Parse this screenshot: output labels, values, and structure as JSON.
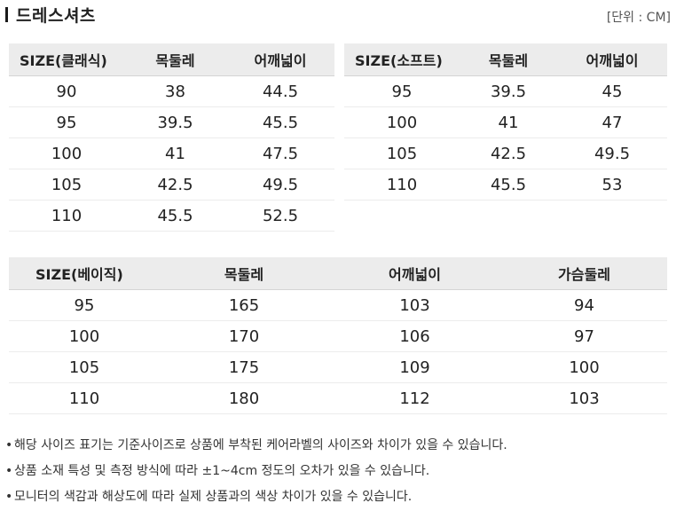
{
  "header": {
    "title": "드레스셔츠",
    "unit": "[단위 : CM]"
  },
  "table_classic": {
    "columns": [
      "SIZE(클래식)",
      "목둘레",
      "어깨넓이"
    ],
    "rows": [
      [
        "90",
        "38",
        "44.5"
      ],
      [
        "95",
        "39.5",
        "45.5"
      ],
      [
        "100",
        "41",
        "47.5"
      ],
      [
        "105",
        "42.5",
        "49.5"
      ],
      [
        "110",
        "45.5",
        "52.5"
      ]
    ]
  },
  "table_soft": {
    "columns": [
      "SIZE(소프트)",
      "목둘레",
      "어깨넓이"
    ],
    "rows": [
      [
        "95",
        "39.5",
        "45"
      ],
      [
        "100",
        "41",
        "47"
      ],
      [
        "105",
        "42.5",
        "49.5"
      ],
      [
        "110",
        "45.5",
        "53"
      ]
    ]
  },
  "table_basic": {
    "columns": [
      "SIZE(베이직)",
      "목둘레",
      "어깨넓이",
      "가슴둘레"
    ],
    "rows": [
      [
        "95",
        "165",
        "103",
        "94"
      ],
      [
        "100",
        "170",
        "106",
        "97"
      ],
      [
        "105",
        "175",
        "109",
        "100"
      ],
      [
        "110",
        "180",
        "112",
        "103"
      ]
    ]
  },
  "notes": [
    "해당 사이즈 표기는 기준사이즈로 상품에 부착된 케어라벨의 사이즈와 차이가 있을 수 있습니다.",
    "상품 소재 특성 및 측정 방식에 따라 ±1~4cm 정도의 오차가 있을 수 있습니다.",
    "모니터의 색감과 해상도에 따라 실제 상품과의 색상 차이가 있을 수 있습니다."
  ]
}
